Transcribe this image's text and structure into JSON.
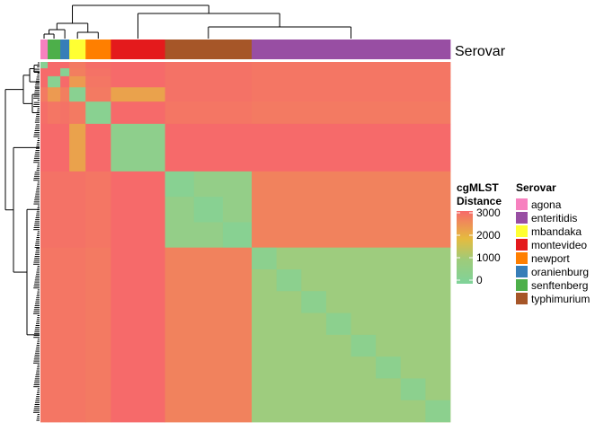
{
  "chart_data": {
    "type": "heatmap",
    "title": "",
    "annotation_label": "Serovar",
    "color_legend": {
      "title_line1": "cgMLST",
      "title_line2": "Distance",
      "ticks": [
        3000,
        2000,
        1000,
        0
      ],
      "range": [
        0,
        3000
      ],
      "colors": {
        "low": "#7FD39A",
        "mid": "#E5BB3F",
        "high": "#F66A6A"
      }
    },
    "serovar_legend": {
      "title": "Serovar",
      "entries": [
        {
          "name": "agona",
          "color": "#F781BF"
        },
        {
          "name": "enteritidis",
          "color": "#984EA3"
        },
        {
          "name": "mbandaka",
          "color": "#FFFF33"
        },
        {
          "name": "montevideo",
          "color": "#E41A1C"
        },
        {
          "name": "newport",
          "color": "#FF7F00"
        },
        {
          "name": "oranienburg",
          "color": "#377EB8"
        },
        {
          "name": "senftenberg",
          "color": "#4DAF4A"
        },
        {
          "name": "typhimurium",
          "color": "#A65628"
        }
      ]
    },
    "column_order": [
      "agona",
      "senftenberg",
      "oranienburg",
      "mbandaka",
      "newport",
      "montevideo",
      "typhimurium",
      "enteritidis"
    ],
    "row_order": [
      "agona",
      "oranienburg",
      "senftenberg",
      "mbandaka",
      "newport",
      "montevideo",
      "typhimurium",
      "enteritidis"
    ],
    "group_size_estimates": [
      4,
      5,
      7,
      9,
      14,
      30,
      48,
      110
    ],
    "approx_block_distances": [
      [
        150,
        3000,
        3000,
        2800,
        2950,
        3000,
        2900,
        2850
      ],
      [
        3000,
        150,
        3000,
        2750,
        2900,
        3000,
        2900,
        2850
      ],
      [
        3000,
        3000,
        200,
        2400,
        2850,
        3000,
        2900,
        2850
      ],
      [
        2800,
        2750,
        2400,
        200,
        2800,
        2300,
        2900,
        2850
      ],
      [
        2950,
        2900,
        2850,
        2800,
        200,
        3000,
        2850,
        2800
      ],
      [
        3000,
        3000,
        3000,
        2300,
        3000,
        300,
        3000,
        3000
      ],
      [
        2900,
        2900,
        2900,
        2900,
        2850,
        3000,
        400,
        2700
      ],
      [
        2850,
        2850,
        2850,
        2850,
        2800,
        3000,
        2700,
        600
      ]
    ]
  }
}
